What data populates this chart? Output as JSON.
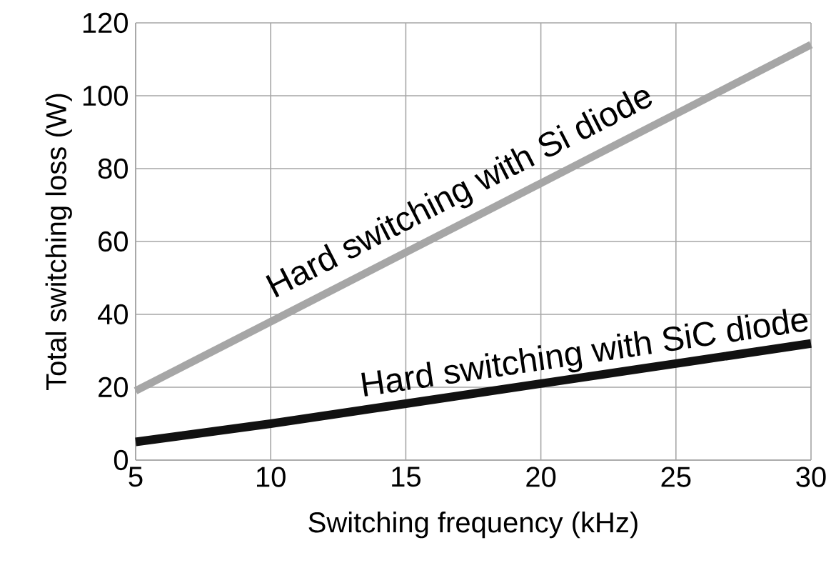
{
  "chart_data": {
    "type": "line",
    "xlabel": "Switching frequency (kHz)",
    "ylabel": "Total switching loss (W)",
    "x": [
      5,
      10,
      15,
      20,
      25,
      30
    ],
    "series": [
      {
        "name": "Hard switching with Si diode",
        "color": "#a6a6a6",
        "values": [
          19,
          38,
          57,
          76,
          95,
          114
        ]
      },
      {
        "name": "Hard switching with SiC diode",
        "color": "#111111",
        "values": [
          5,
          10,
          15.5,
          21,
          26.5,
          32
        ]
      }
    ],
    "xlim": [
      5,
      30
    ],
    "xticks": [
      5,
      10,
      15,
      20,
      25,
      30
    ],
    "ylim": [
      0,
      120
    ],
    "yticks": [
      0,
      20,
      40,
      60,
      80,
      100,
      120
    ],
    "grid": true,
    "legend": false,
    "marker": "none",
    "line_style": "solid"
  }
}
